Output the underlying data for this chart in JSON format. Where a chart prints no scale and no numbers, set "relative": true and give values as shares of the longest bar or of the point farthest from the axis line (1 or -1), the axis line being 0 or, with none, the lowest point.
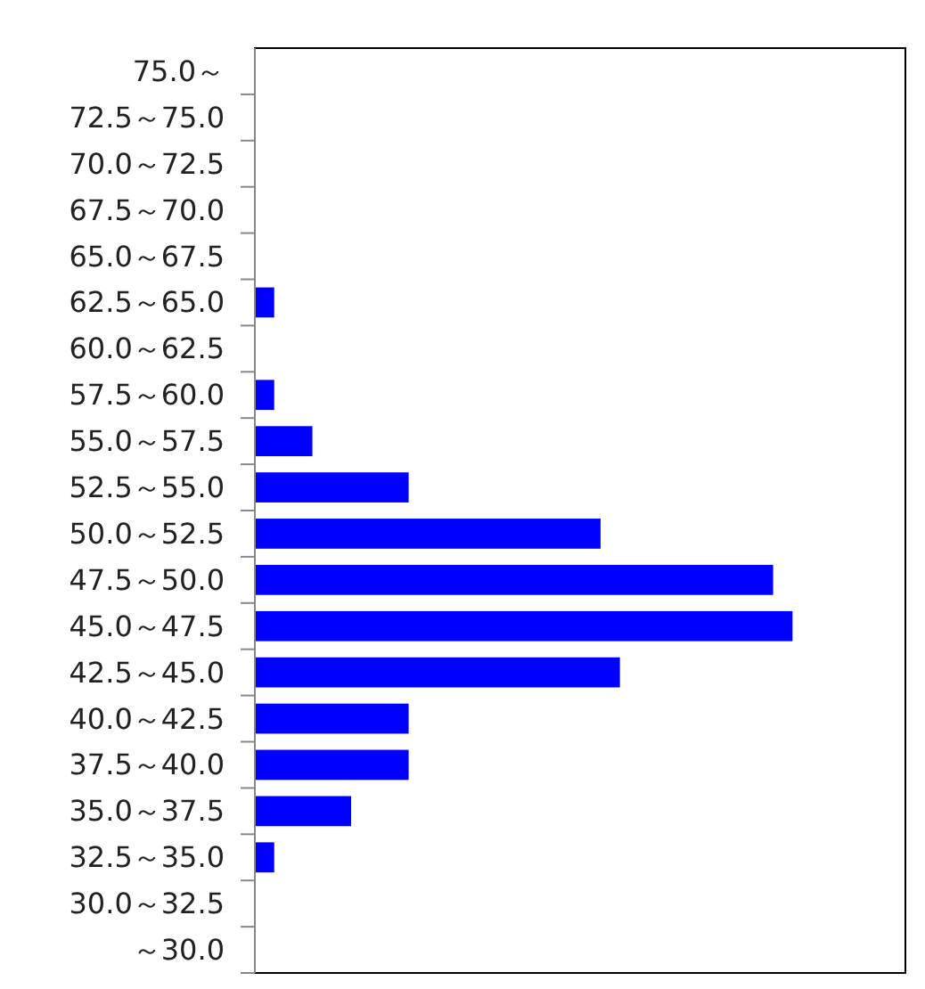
{
  "chart_data": {
    "type": "bar",
    "orientation": "horizontal",
    "relative": true,
    "categories": [
      "75.0～",
      "72.5～75.0",
      "70.0～72.5",
      "67.5～70.0",
      "65.0～67.5",
      "62.5～65.0",
      "60.0～62.5",
      "57.5～60.0",
      "55.0～57.5",
      "52.5～55.0",
      "50.0～52.5",
      "47.5～50.0",
      "45.0～47.5",
      "42.5～45.0",
      "40.0～42.5",
      "37.5～40.0",
      "35.0～37.5",
      "32.5～35.0",
      "30.0～32.5",
      "～30.0"
    ],
    "values": [
      0,
      0,
      0,
      0,
      0,
      0.036,
      0,
      0.036,
      0.107,
      0.286,
      0.643,
      0.964,
      1,
      0.679,
      0.286,
      0.286,
      0.179,
      0.036,
      0,
      0
    ],
    "color": "#0000ff"
  }
}
